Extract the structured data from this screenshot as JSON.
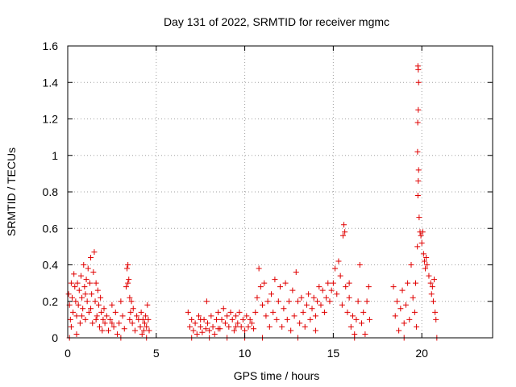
{
  "chart_data": {
    "type": "scatter",
    "title": "Day 131 of 2022, SRMTID for receiver mgmc",
    "xlabel": "GPS time / hours",
    "ylabel": "SRMTID / TECUs",
    "xlim": [
      0,
      24
    ],
    "ylim": [
      0,
      1.6
    ],
    "xticks": [
      0,
      5,
      10,
      15,
      20
    ],
    "xtick_labels": [
      "0",
      "5",
      "10",
      "15",
      "20"
    ],
    "yticks": [
      0,
      0.2,
      0.4,
      0.6,
      0.8,
      1.0,
      1.2,
      1.4,
      1.6
    ],
    "ytick_labels": [
      "0",
      "0.2",
      "0.4",
      "0.6",
      "0.8",
      "1",
      "1.2",
      "1.4",
      "1.6"
    ],
    "grid": true,
    "marker": "+",
    "color": "#e00000",
    "series": [
      {
        "name": "SRMTID",
        "points": [
          [
            0.05,
            0.24
          ],
          [
            0.1,
            0.18
          ],
          [
            0.15,
            0.1
          ],
          [
            0.2,
            0.3
          ],
          [
            0.25,
            0.22
          ],
          [
            0.3,
            0.14
          ],
          [
            0.35,
            0.35
          ],
          [
            0.4,
            0.28
          ],
          [
            0.45,
            0.2
          ],
          [
            0.5,
            0.12
          ],
          [
            0.55,
            0.3
          ],
          [
            0.6,
            0.18
          ],
          [
            0.65,
            0.26
          ],
          [
            0.7,
            0.08
          ],
          [
            0.75,
            0.34
          ],
          [
            0.8,
            0.22
          ],
          [
            0.85,
            0.16
          ],
          [
            0.9,
            0.4
          ],
          [
            0.95,
            0.28
          ],
          [
            1.0,
            0.1
          ],
          [
            1.05,
            0.32
          ],
          [
            1.1,
            0.2
          ],
          [
            1.15,
            0.38
          ],
          [
            1.2,
            0.14
          ],
          [
            1.25,
            0.3
          ],
          [
            1.3,
            0.44
          ],
          [
            1.35,
            0.24
          ],
          [
            1.4,
            0.08
          ],
          [
            1.45,
            0.36
          ],
          [
            1.5,
            0.47
          ],
          [
            1.55,
            0.2
          ],
          [
            1.6,
            0.3
          ],
          [
            1.65,
            0.12
          ],
          [
            1.7,
            0.26
          ],
          [
            1.75,
            0.18
          ],
          [
            1.8,
            0.06
          ],
          [
            1.85,
            0.22
          ],
          [
            1.9,
            0.14
          ],
          [
            1.95,
            0.04
          ],
          [
            2.0,
            0.1
          ],
          [
            0.2,
            0.06
          ],
          [
            0.5,
            0.02
          ],
          [
            0.8,
            0.12
          ],
          [
            1.0,
            0.24
          ],
          [
            1.3,
            0.16
          ],
          [
            1.6,
            0.1
          ],
          [
            0.1,
            0.0
          ],
          [
            2.05,
            0.16
          ],
          [
            2.1,
            0.08
          ],
          [
            2.2,
            0.12
          ],
          [
            2.3,
            0.04
          ],
          [
            2.4,
            0.1
          ],
          [
            2.5,
            0.18
          ],
          [
            2.6,
            0.06
          ],
          [
            2.7,
            0.14
          ],
          [
            2.8,
            0.02
          ],
          [
            2.9,
            0.08
          ],
          [
            3.0,
            0.2
          ],
          [
            3.1,
            0.12
          ],
          [
            3.2,
            0.05
          ],
          [
            3.3,
            0.28
          ],
          [
            3.35,
            0.38
          ],
          [
            3.4,
            0.4
          ],
          [
            3.45,
            0.32
          ],
          [
            3.5,
            0.22
          ],
          [
            3.55,
            0.14
          ],
          [
            3.6,
            0.2
          ],
          [
            3.65,
            0.08
          ],
          [
            3.7,
            0.16
          ],
          [
            3.8,
            0.04
          ],
          [
            3.9,
            0.12
          ],
          [
            3.0,
            0.0
          ],
          [
            3.4,
            0.3
          ],
          [
            3.5,
            0.1
          ],
          [
            2.5,
            0.08
          ],
          [
            4.0,
            0.1
          ],
          [
            4.1,
            0.06
          ],
          [
            4.15,
            0.14
          ],
          [
            4.2,
            0.02
          ],
          [
            4.25,
            0.1
          ],
          [
            4.3,
            0.04
          ],
          [
            4.35,
            0.08
          ],
          [
            4.4,
            0.12
          ],
          [
            4.45,
            0.06
          ],
          [
            4.5,
            0.18
          ],
          [
            4.55,
            0.1
          ],
          [
            4.6,
            0.04
          ],
          [
            4.45,
            0.0
          ],
          [
            6.8,
            0.14
          ],
          [
            6.9,
            0.06
          ],
          [
            7.0,
            0.1
          ],
          [
            7.1,
            0.04
          ],
          [
            7.2,
            0.08
          ],
          [
            7.3,
            0.02
          ],
          [
            7.4,
            0.12
          ],
          [
            7.5,
            0.06
          ],
          [
            7.6,
            0.03
          ],
          [
            7.7,
            0.1
          ],
          [
            7.8,
            0.05
          ],
          [
            7.85,
            0.2
          ],
          [
            7.9,
            0.08
          ],
          [
            8.0,
            0.04
          ],
          [
            8.1,
            0.12
          ],
          [
            8.2,
            0.06
          ],
          [
            8.3,
            0.02
          ],
          [
            8.4,
            0.1
          ],
          [
            8.5,
            0.14
          ],
          [
            8.6,
            0.05
          ],
          [
            8.7,
            0.1
          ],
          [
            8.8,
            0.16
          ],
          [
            8.9,
            0.08
          ],
          [
            9.0,
            0.12
          ],
          [
            9.1,
            0.06
          ],
          [
            9.2,
            0.14
          ],
          [
            9.3,
            0.1
          ],
          [
            9.4,
            0.04
          ],
          [
            9.5,
            0.12
          ],
          [
            9.6,
            0.08
          ],
          [
            9.7,
            0.14
          ],
          [
            9.8,
            0.06
          ],
          [
            9.9,
            0.1
          ],
          [
            10.0,
            0.04
          ],
          [
            10.1,
            0.12
          ],
          [
            10.2,
            0.06
          ],
          [
            10.3,
            0.1
          ],
          [
            10.4,
            0.08
          ],
          [
            10.5,
            0.05
          ],
          [
            7.0,
            0.0
          ],
          [
            8.0,
            0.0
          ],
          [
            9.0,
            0.0
          ],
          [
            10.0,
            0.0
          ],
          [
            7.5,
            0.1
          ],
          [
            8.5,
            0.05
          ],
          [
            9.5,
            0.06
          ],
          [
            10.6,
            0.14
          ],
          [
            10.7,
            0.22
          ],
          [
            10.8,
            0.38
          ],
          [
            10.9,
            0.28
          ],
          [
            11.0,
            0.18
          ],
          [
            11.1,
            0.3
          ],
          [
            11.2,
            0.12
          ],
          [
            11.3,
            0.2
          ],
          [
            11.4,
            0.06
          ],
          [
            11.5,
            0.24
          ],
          [
            11.6,
            0.14
          ],
          [
            11.7,
            0.32
          ],
          [
            11.8,
            0.1
          ],
          [
            11.9,
            0.2
          ],
          [
            12.0,
            0.28
          ],
          [
            12.1,
            0.06
          ],
          [
            12.2,
            0.16
          ],
          [
            12.3,
            0.3
          ],
          [
            12.4,
            0.1
          ],
          [
            12.5,
            0.2
          ],
          [
            12.6,
            0.04
          ],
          [
            12.7,
            0.26
          ],
          [
            12.8,
            0.12
          ],
          [
            12.9,
            0.36
          ],
          [
            13.0,
            0.2
          ],
          [
            13.1,
            0.08
          ],
          [
            13.2,
            0.22
          ],
          [
            13.3,
            0.14
          ],
          [
            13.4,
            0.06
          ],
          [
            13.5,
            0.18
          ],
          [
            13.6,
            0.24
          ],
          [
            13.7,
            0.1
          ],
          [
            13.8,
            0.16
          ],
          [
            13.9,
            0.22
          ],
          [
            14.0,
            0.12
          ],
          [
            14.1,
            0.2
          ],
          [
            14.2,
            0.28
          ],
          [
            14.3,
            0.18
          ],
          [
            14.4,
            0.26
          ],
          [
            14.5,
            0.14
          ],
          [
            14.6,
            0.22
          ],
          [
            14.7,
            0.3
          ],
          [
            14.8,
            0.2
          ],
          [
            14.9,
            0.26
          ],
          [
            13.0,
            0.0
          ],
          [
            14.0,
            0.04
          ],
          [
            11.0,
            0.0
          ],
          [
            15.0,
            0.3
          ],
          [
            15.1,
            0.38
          ],
          [
            15.2,
            0.24
          ],
          [
            15.3,
            0.42
          ],
          [
            15.4,
            0.34
          ],
          [
            15.5,
            0.18
          ],
          [
            15.55,
            0.56
          ],
          [
            15.6,
            0.62
          ],
          [
            15.65,
            0.58
          ],
          [
            15.7,
            0.28
          ],
          [
            15.8,
            0.14
          ],
          [
            15.9,
            0.22
          ],
          [
            16.0,
            0.06
          ],
          [
            16.1,
            0.12
          ],
          [
            16.2,
            0.02
          ],
          [
            16.3,
            0.1
          ],
          [
            16.4,
            0.2
          ],
          [
            16.5,
            0.4
          ],
          [
            16.6,
            0.08
          ],
          [
            16.7,
            0.14
          ],
          [
            16.8,
            0.02
          ],
          [
            16.9,
            0.2
          ],
          [
            17.0,
            0.28
          ],
          [
            17.05,
            0.1
          ],
          [
            16.2,
            0.0
          ],
          [
            15.9,
            0.3
          ],
          [
            18.4,
            0.28
          ],
          [
            18.5,
            0.12
          ],
          [
            18.6,
            0.2
          ],
          [
            18.7,
            0.04
          ],
          [
            18.8,
            0.16
          ],
          [
            18.9,
            0.26
          ],
          [
            19.0,
            0.08
          ],
          [
            19.1,
            0.18
          ],
          [
            19.2,
            0.3
          ],
          [
            19.3,
            0.1
          ],
          [
            19.4,
            0.4
          ],
          [
            19.5,
            0.22
          ],
          [
            19.6,
            0.14
          ],
          [
            19.65,
            0.3
          ],
          [
            19.7,
            0.06
          ],
          [
            19.75,
            0.5
          ],
          [
            19.78,
            0.78
          ],
          [
            19.8,
            0.86
          ],
          [
            19.82,
            0.92
          ],
          [
            19.76,
            1.02
          ],
          [
            19.77,
            1.18
          ],
          [
            19.8,
            1.25
          ],
          [
            19.82,
            1.4
          ],
          [
            19.8,
            1.47
          ],
          [
            19.78,
            1.49
          ],
          [
            19.85,
            0.66
          ],
          [
            19.9,
            0.58
          ],
          [
            19.95,
            0.56
          ],
          [
            20.0,
            0.52
          ],
          [
            20.05,
            0.58
          ],
          [
            20.1,
            0.46
          ],
          [
            20.15,
            0.42
          ],
          [
            20.2,
            0.38
          ],
          [
            20.25,
            0.44
          ],
          [
            20.3,
            0.4
          ],
          [
            20.4,
            0.34
          ],
          [
            20.5,
            0.3
          ],
          [
            20.55,
            0.24
          ],
          [
            20.6,
            0.28
          ],
          [
            20.65,
            0.2
          ],
          [
            20.7,
            0.32
          ],
          [
            20.75,
            0.14
          ],
          [
            20.8,
            0.1
          ],
          [
            20.85,
            0.0
          ],
          [
            19.0,
            0.0
          ]
        ]
      }
    ]
  }
}
